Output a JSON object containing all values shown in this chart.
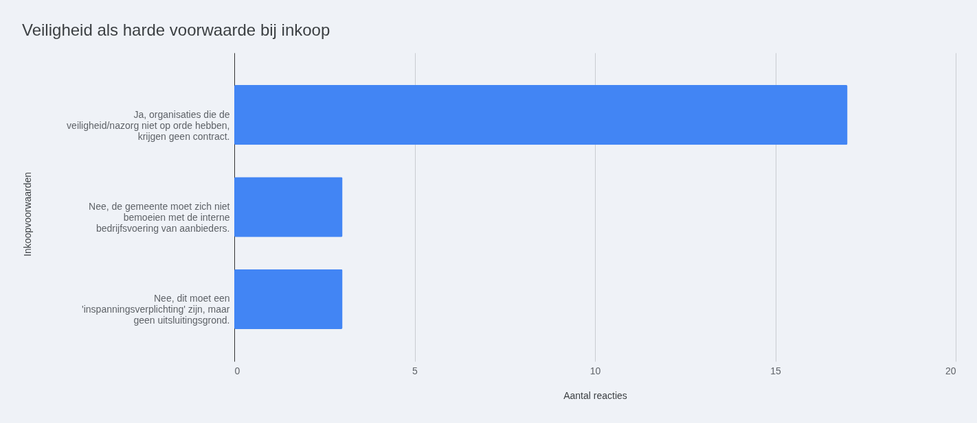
{
  "chart_data": {
    "type": "bar",
    "orientation": "horizontal",
    "title": "Veiligheid als harde voorwaarde bij inkoop",
    "xlabel": "Aantal reacties",
    "ylabel": "Inkoopvoorwaarden",
    "categories": [
      "Ja, organisaties die de veiligheid/nazorg niet op orde hebben, krijgen geen contract.",
      "Nee, de gemeente moet zich niet bemoeien met de interne bedrijfsvoering van aanbieders.",
      "Nee, dit moet een 'inspanningsverplichting' zijn, maar geen uitsluitingsgrond."
    ],
    "values": [
      17,
      3,
      3
    ],
    "color": "#4285f4",
    "xlim": [
      0,
      20
    ],
    "xticks": [
      0,
      5,
      10,
      15,
      20
    ],
    "grid": "x"
  }
}
